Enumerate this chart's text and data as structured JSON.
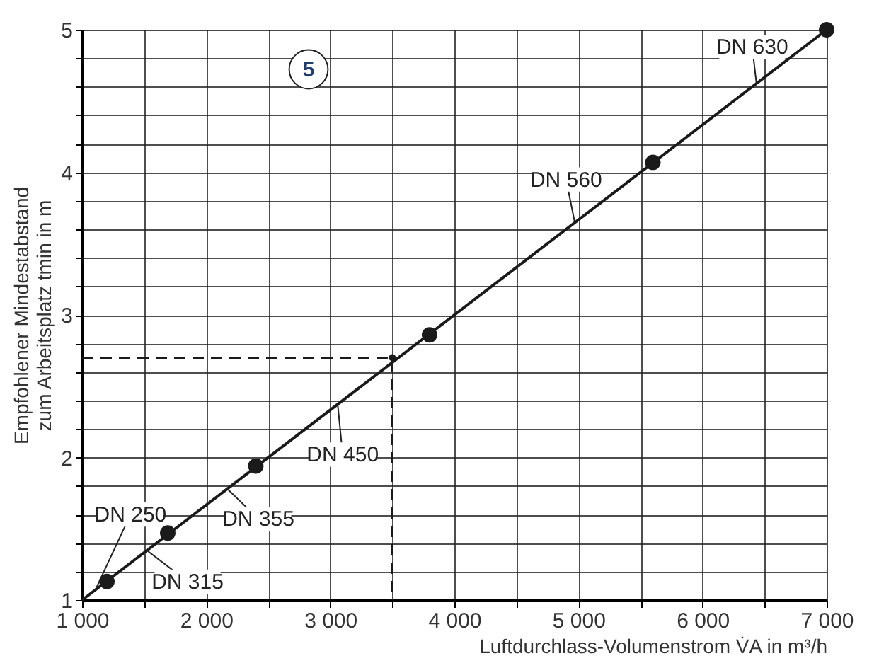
{
  "chart_data": {
    "type": "scatter",
    "xlabel": "Luftdurchlass-Volumenstrom V̇A in m³/h",
    "ylabel": "Empfohlener Mindestabstand\nzum Arbeitsplatz tmin in m",
    "xlim": [
      1000,
      7000
    ],
    "ylim": [
      1,
      5
    ],
    "xticks": [
      {
        "value": 1000,
        "label": "1 000"
      },
      {
        "value": 1500,
        "label": null
      },
      {
        "value": 2000,
        "label": "2 000"
      },
      {
        "value": 2500,
        "label": null
      },
      {
        "value": 3000,
        "label": "3 000"
      },
      {
        "value": 3500,
        "label": null
      },
      {
        "value": 4000,
        "label": "4 000"
      },
      {
        "value": 4500,
        "label": null
      },
      {
        "value": 5000,
        "label": "5 000"
      },
      {
        "value": 5500,
        "label": null
      },
      {
        "value": 6000,
        "label": "6 000"
      },
      {
        "value": 6500,
        "label": null
      },
      {
        "value": 7000,
        "label": "7 000"
      }
    ],
    "yticks": [
      1,
      {
        "value": 1.2,
        "label": null
      },
      {
        "value": 1.4,
        "label": null
      },
      {
        "value": 1.6,
        "label": null
      },
      {
        "value": 1.8,
        "label": null
      },
      2,
      {
        "value": 2.2,
        "label": null
      },
      {
        "value": 2.4,
        "label": null
      },
      {
        "value": 2.6,
        "label": null
      },
      {
        "value": 2.8,
        "label": null
      },
      3,
      {
        "value": 3.2,
        "label": null
      },
      {
        "value": 3.4,
        "label": null
      },
      {
        "value": 3.6,
        "label": null
      },
      {
        "value": 3.8,
        "label": null
      },
      4,
      {
        "value": 4.2,
        "label": null
      },
      {
        "value": 4.4,
        "label": null
      },
      {
        "value": 4.6,
        "label": null
      },
      {
        "value": 4.8,
        "label": null
      },
      5
    ],
    "grid": true,
    "series": [
      {
        "type": "line",
        "color": "#1a1a1a",
        "x": [
          1000,
          7000
        ],
        "values": [
          1,
          5
        ],
        "marker": "none",
        "line_style": "solid"
      },
      {
        "color": "#1a1a1a",
        "x": [
          1200,
          1690,
          2400,
          3800,
          5600,
          7000
        ],
        "values": [
          1.13,
          1.47,
          1.94,
          2.86,
          4.07,
          5
        ],
        "marker": "circle"
      },
      {
        "type": "line",
        "color": "#1a1a1a",
        "x": [
          1000,
          3500,
          3500
        ],
        "values": [
          2.7,
          2.7,
          1
        ],
        "marker": "none",
        "line_style": "dashed"
      },
      {
        "color": "#1a1a1a",
        "x": [
          3500
        ],
        "values": [
          2.7
        ],
        "marker": "circle"
      }
    ],
    "annotations": [
      "5",
      {
        "text": "DN 250",
        "x": 1106,
        "y": 1.07
      },
      {
        "text": "DN 315",
        "x": 1520,
        "y": 1.35
      },
      {
        "text": "DN 355",
        "x": 2170,
        "y": 1.78
      },
      {
        "text": "DN 450",
        "x": 3060,
        "y": 2.37
      },
      {
        "text": "DN 560",
        "x": 4970,
        "y": 3.65
      },
      {
        "text": "DN 630",
        "x": 6435,
        "y": 4.62
      }
    ]
  }
}
